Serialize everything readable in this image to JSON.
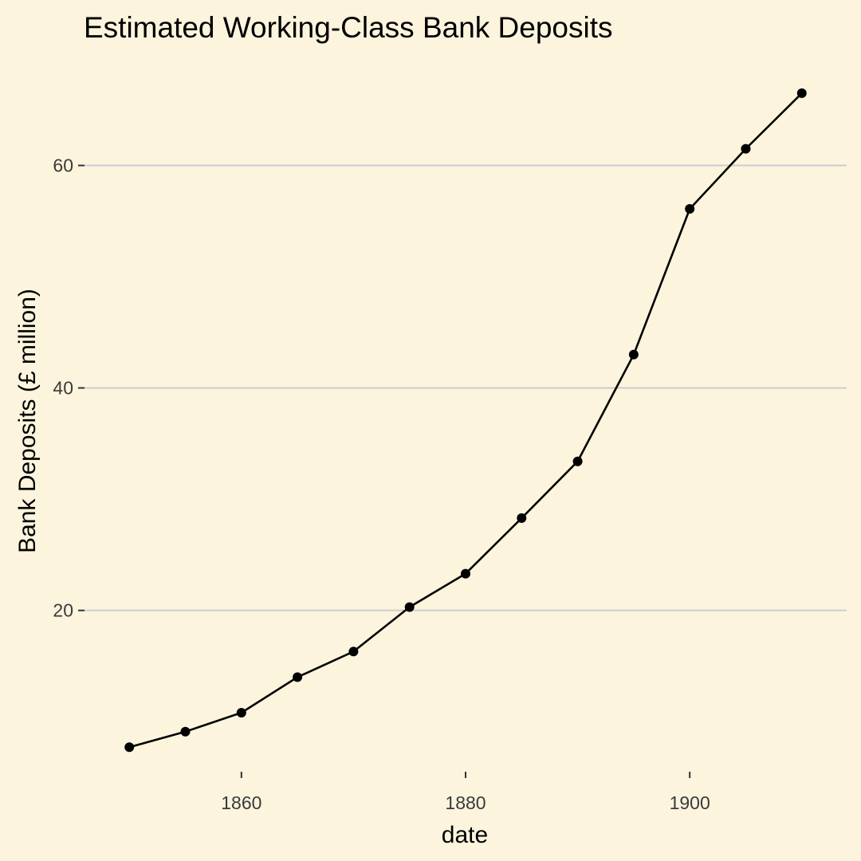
{
  "chart_data": {
    "type": "line",
    "title": "Estimated Working-Class Bank Deposits",
    "xlabel": "date",
    "ylabel": "Bank Deposits (£ million)",
    "x": [
      1850,
      1855,
      1860,
      1865,
      1870,
      1875,
      1880,
      1885,
      1890,
      1895,
      1900,
      1905,
      1910
    ],
    "series": [
      {
        "name": "Bank Deposits",
        "values": [
          7.7,
          9.1,
          10.8,
          14.0,
          16.3,
          20.3,
          23.3,
          28.3,
          33.4,
          43.0,
          56.1,
          61.5,
          66.5
        ]
      }
    ],
    "xlim": [
      1846,
      1914
    ],
    "ylim": [
      5.5,
      69.5
    ],
    "x_ticks": [
      1860,
      1880,
      1900
    ],
    "y_ticks": [
      20,
      40,
      60
    ],
    "x_tick_labels": [
      "1860",
      "1880",
      "1900"
    ],
    "y_tick_labels": [
      "20",
      "40",
      "60"
    ],
    "grid": "horizontal",
    "colors": {
      "background": "#fcf4dd",
      "line": "#000000",
      "grid": "#cccccc"
    }
  }
}
